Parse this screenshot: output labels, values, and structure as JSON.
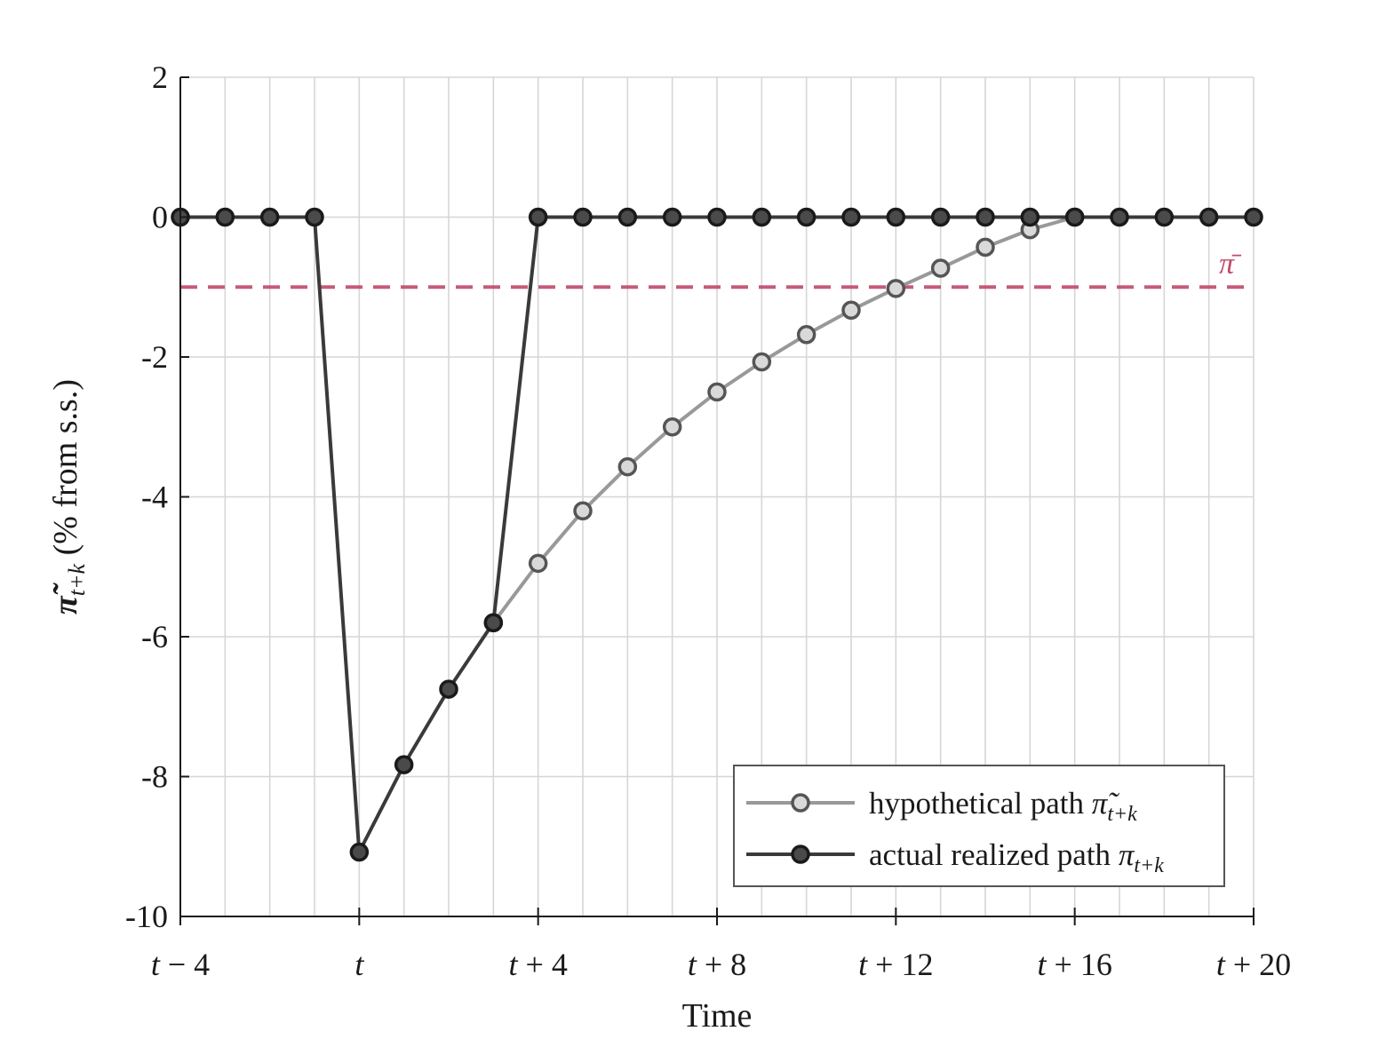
{
  "chart_data": {
    "type": "line",
    "xlabel": "Time",
    "ylabel_symbol": "π̃",
    "ylabel_sub": "t+k",
    "ylabel_rest": " (% from s.s.)",
    "xlim": [
      -4,
      20
    ],
    "ylim": [
      -10,
      2
    ],
    "x_ticks": [
      {
        "value": -4,
        "base": "t",
        "op": "−",
        "num": "4"
      },
      {
        "value": 0,
        "base": "t",
        "op": "",
        "num": ""
      },
      {
        "value": 4,
        "base": "t",
        "op": "+",
        "num": "4"
      },
      {
        "value": 8,
        "base": "t",
        "op": "+",
        "num": "8"
      },
      {
        "value": 12,
        "base": "t",
        "op": "+",
        "num": "12"
      },
      {
        "value": 16,
        "base": "t",
        "op": "+",
        "num": "16"
      },
      {
        "value": 20,
        "base": "t",
        "op": "+",
        "num": "20"
      }
    ],
    "x_minor_grid": [
      -3,
      -2,
      -1,
      1,
      2,
      3,
      5,
      6,
      7,
      9,
      10,
      11,
      13,
      14,
      15,
      17,
      18,
      19
    ],
    "y_ticks": [
      {
        "value": 2,
        "label": "2"
      },
      {
        "value": 0,
        "label": "0"
      },
      {
        "value": -2,
        "label": "-2"
      },
      {
        "value": -4,
        "label": "-4"
      },
      {
        "value": -6,
        "label": "-6"
      },
      {
        "value": -8,
        "label": "-8"
      },
      {
        "value": -10,
        "label": "-10"
      }
    ],
    "grid": true,
    "legend_placement": "bottom-right",
    "reference_line": {
      "y": -1,
      "label": "π̄",
      "color": "#c04a6a"
    },
    "series": [
      {
        "key": "hypothetical",
        "name_text": "hypothetical path ",
        "name_symbol": "π̃",
        "name_sub": "t+k",
        "line_color": "#999999",
        "marker_fill": "#d9d9d9",
        "marker_edge": "#555555",
        "x": [
          3,
          4,
          5,
          6,
          7,
          8,
          9,
          10,
          11,
          12,
          13,
          14,
          15,
          16
        ],
        "y": [
          -5.8,
          -4.95,
          -4.2,
          -3.57,
          -3.0,
          -2.5,
          -2.07,
          -1.68,
          -1.33,
          -1.02,
          -0.73,
          -0.43,
          -0.18,
          0.0
        ]
      },
      {
        "key": "actual",
        "name_text": "actual realized path ",
        "name_symbol": "π",
        "name_sub": "t+k",
        "line_color": "#3a3a3a",
        "marker_fill": "#4a4a4a",
        "marker_edge": "#1a1a1a",
        "x": [
          -4,
          -3,
          -2,
          -1,
          0,
          1,
          2,
          3,
          4,
          5,
          6,
          7,
          8,
          9,
          10,
          11,
          12,
          13,
          14,
          15,
          16,
          17,
          18,
          19,
          20
        ],
        "y": [
          0,
          0,
          0,
          0,
          -9.08,
          -7.83,
          -6.75,
          -5.8,
          0,
          0,
          0,
          0,
          0,
          0,
          0,
          0,
          0,
          0,
          0,
          0,
          0,
          0,
          0,
          0,
          0
        ]
      }
    ]
  }
}
